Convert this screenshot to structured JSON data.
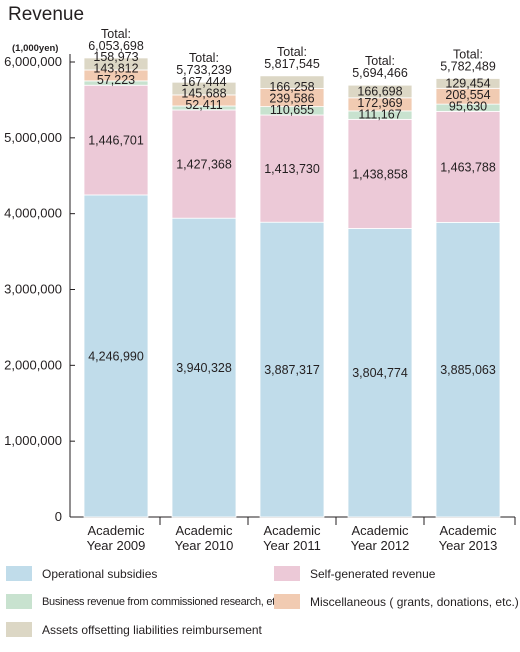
{
  "chart_data": {
    "type": "bar",
    "stacked": true,
    "title": "Revenue",
    "unit_label": "(1,000yen)",
    "categories": [
      "Academic\nYear 2009",
      "Academic\nYear 2010",
      "Academic\nYear 2011",
      "Academic\nYear 2012",
      "Academic\nYear 2013"
    ],
    "ylim": [
      0,
      6000000
    ],
    "yticks": [
      0,
      1000000,
      2000000,
      3000000,
      4000000,
      5000000,
      6000000
    ],
    "ytick_labels": [
      "0",
      "1,000,000",
      "2,000,000",
      "3,000,000",
      "4,000,000",
      "5,000,000",
      "6,000,000"
    ],
    "total_prefix": "Total:",
    "totals": [
      "6,053,698",
      "5,733,239",
      "5,817,545",
      "5,694,466",
      "5,782,489"
    ],
    "series": [
      {
        "name": "Operational subsidies",
        "color": "#c0dcea",
        "values": [
          4246990,
          3940328,
          3887317,
          3804774,
          3885063
        ],
        "labels": [
          "4,246,990",
          "3,940,328",
          "3,887,317",
          "3,804,774",
          "3,885,063"
        ]
      },
      {
        "name": "Self-generated revenue",
        "color": "#ecc9d7",
        "values": [
          1446701,
          1427368,
          1413730,
          1438858,
          1463788
        ],
        "labels": [
          "1,446,701",
          "1,427,368",
          "1,413,730",
          "1,438,858",
          "1,463,788"
        ]
      },
      {
        "name": "Business revenue from commissioned research, etc.",
        "color": "#c8e2cf",
        "values": [
          57223,
          52411,
          110655,
          111167,
          95630
        ],
        "labels": [
          "57,223",
          "52,411",
          "110,655",
          "111,167",
          "95,630"
        ]
      },
      {
        "name": "Miscellaneous ( grants, donations, etc.)",
        "color": "#f1cbb2",
        "values": [
          143812,
          145688,
          239586,
          172969,
          208554
        ],
        "labels": [
          "143,812",
          "145,688",
          "239,586",
          "172,969",
          "208,554"
        ]
      },
      {
        "name": "Assets offsetting liabilities reimbursement",
        "color": "#dcd7c5",
        "values": [
          158973,
          167444,
          166258,
          166698,
          129454
        ],
        "labels": [
          "158,973",
          "167,444",
          "166,258",
          "166,698",
          "129,454"
        ]
      }
    ]
  },
  "legend": {
    "items": [
      {
        "label": "Operational subsidies",
        "color": "#c0dcea"
      },
      {
        "label": "Self-generated revenue",
        "color": "#ecc9d7"
      },
      {
        "label": "Business revenue from commissioned research, etc.",
        "color": "#c8e2cf"
      },
      {
        "label": "Miscellaneous ( grants, donations, etc.)",
        "color": "#f1cbb2"
      },
      {
        "label": "Assets offsetting liabilities reimbursement",
        "color": "#dcd7c5"
      }
    ]
  }
}
